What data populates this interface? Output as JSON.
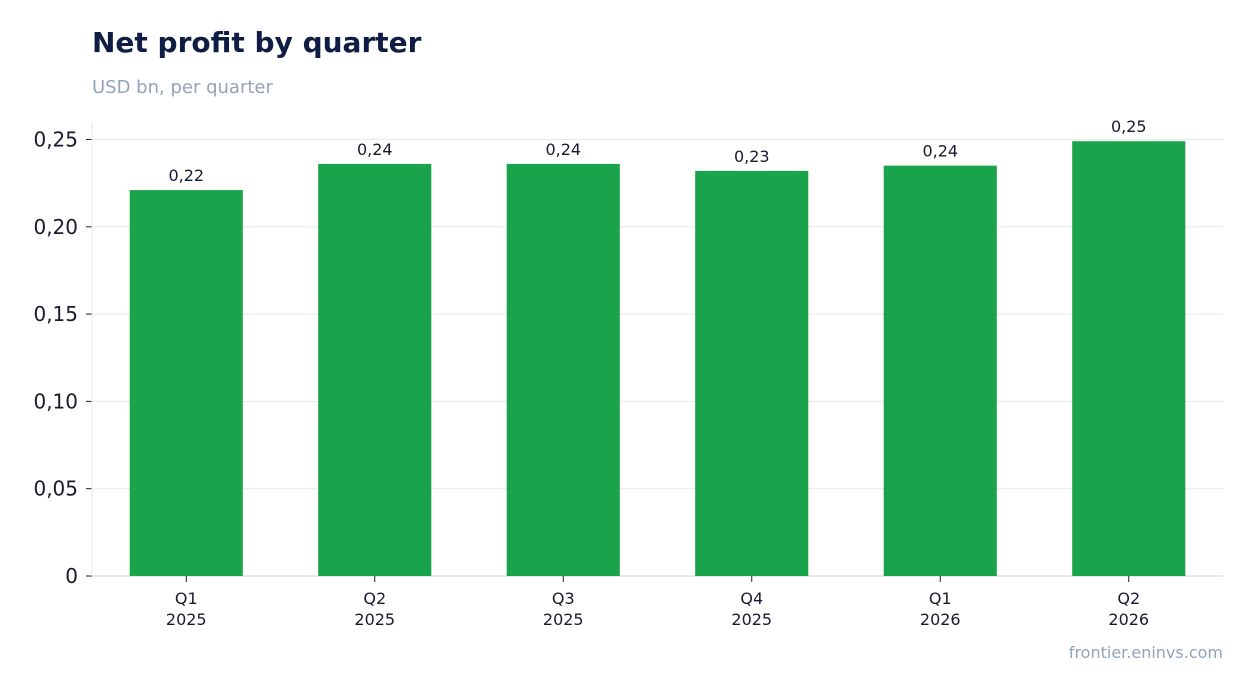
{
  "header": {
    "title": "Net profit by quarter",
    "subtitle": "USD bn, per quarter"
  },
  "footer": {
    "source": "frontier.eninvs.com"
  },
  "colors": {
    "bar": "#19a34a",
    "grid": "#e2e8f0",
    "axis": "#cbd5e1",
    "title": "#0f1d45",
    "muted": "#94a3b8"
  },
  "chart_data": {
    "type": "bar",
    "title": "Net profit by quarter",
    "subtitle": "USD bn, per quarter",
    "xlabel": "",
    "ylabel": "",
    "categories": [
      [
        "Q1",
        "2025"
      ],
      [
        "Q2",
        "2025"
      ],
      [
        "Q3",
        "2025"
      ],
      [
        "Q4",
        "2025"
      ],
      [
        "Q1",
        "2026"
      ],
      [
        "Q2",
        "2026"
      ]
    ],
    "series": [
      {
        "values": [
          0.221,
          0.236,
          0.236,
          0.232,
          0.235,
          0.249
        ],
        "labels": [
          "0,22",
          "0,24",
          "0,24",
          "0,23",
          "0,24",
          "0,25"
        ]
      }
    ],
    "ylim": [
      0,
      0.26
    ],
    "yticks": [
      0,
      0.05,
      0.1,
      0.15,
      0.2,
      0.25
    ],
    "ytick_labels": [
      "0",
      "0,05",
      "0,10",
      "0,15",
      "0,20",
      "0,25"
    ],
    "grid": true,
    "legend": "none"
  }
}
